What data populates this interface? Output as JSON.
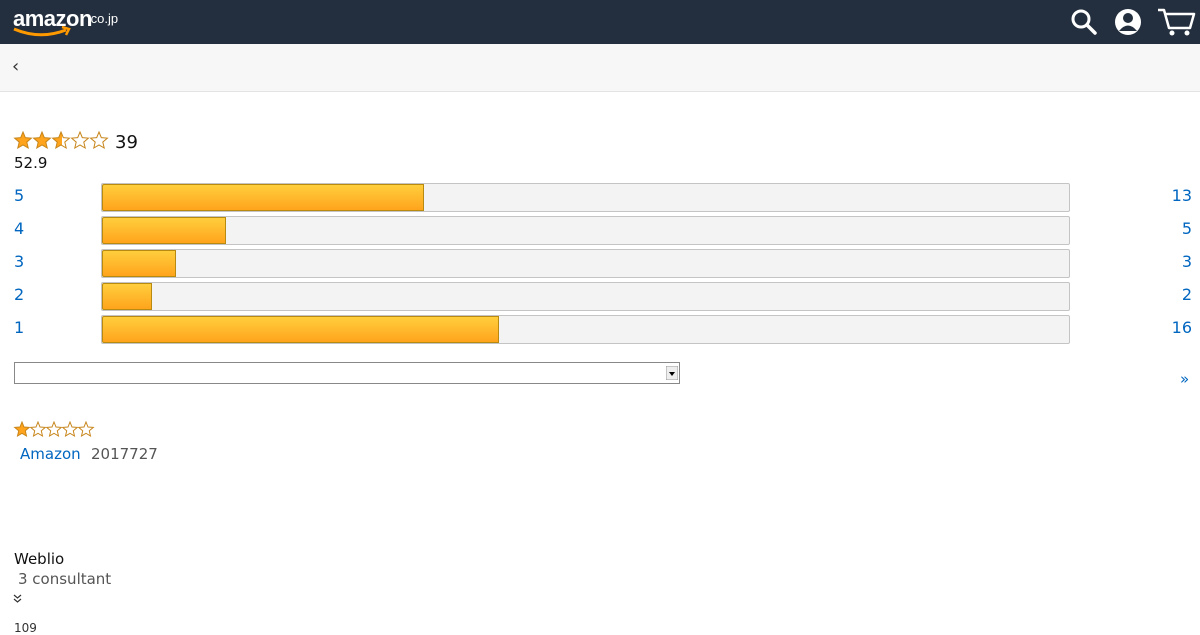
{
  "header": {
    "logo": "amazon",
    "logo_suffix": ".co.jp"
  },
  "nav": {
    "back": "‹"
  },
  "rating": {
    "total": 39,
    "score": 52.9,
    "histogram": [
      {
        "stars": 5,
        "count": 13
      },
      {
        "stars": 4,
        "count": 5
      },
      {
        "stars": 3,
        "count": 3
      },
      {
        "stars": 2,
        "count": 2
      },
      {
        "stars": 1,
        "count": 16
      }
    ]
  },
  "pager": {
    "next": "»"
  },
  "review": {
    "author": "Amazon",
    "date": "2017727"
  },
  "footer": {
    "source": "Weblio",
    "note": "3 consultant",
    "count": "109"
  }
}
